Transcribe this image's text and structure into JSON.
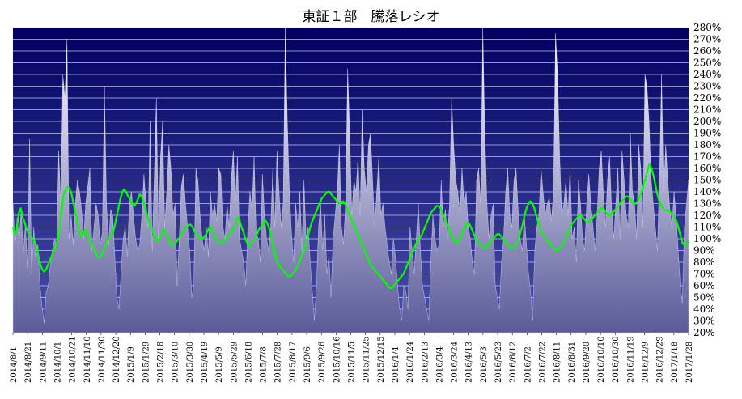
{
  "chart_data": {
    "type": "area",
    "title": "東証１部　騰落レシオ",
    "xlabel": "",
    "ylabel": "",
    "ylim": [
      20,
      280
    ],
    "y_ticks": [
      "20%",
      "30%",
      "40%",
      "50%",
      "60%",
      "70%",
      "80%",
      "90%",
      "100%",
      "110%",
      "120%",
      "130%",
      "140%",
      "150%",
      "160%",
      "170%",
      "180%",
      "190%",
      "200%",
      "210%",
      "220%",
      "230%",
      "240%",
      "250%",
      "260%",
      "270%",
      "280%"
    ],
    "x_ticks": [
      "2014/8/1",
      "2014/8/21",
      "2014/9/11",
      "2014/10/1",
      "2014/10/21",
      "2014/11/10",
      "2014/11/30",
      "2014/12/20",
      "2015/1/9",
      "2015/1/29",
      "2015/2/18",
      "2015/3/10",
      "2015/3/30",
      "2015/4/19",
      "2015/5/9",
      "2015/5/29",
      "2015/6/18",
      "2015/7/8",
      "2015/7/28",
      "2015/8/17",
      "2015/9/6",
      "2015/9/26",
      "2015/10/16",
      "2015/11/5",
      "2015/11/25",
      "2015/12/15",
      "2016/1/4",
      "2016/1/24",
      "2016/2/13",
      "2016/3/4",
      "2016/3/24",
      "2016/4/13",
      "2016/5/3",
      "2016/5/23",
      "2016/6/12",
      "2016/7/2",
      "2016/7/22",
      "2016/8/11",
      "2016/8/31",
      "2016/9/20",
      "2016/10/10",
      "2016/10/30",
      "2016/11/19",
      "2016/12/9",
      "2016/12/29",
      "2017/1/18",
      "2017/1/28"
    ],
    "series": [
      {
        "kind": "daily-ratio-area",
        "color": "#c0c0d8",
        "values": [
          130,
          95,
          118,
          100,
          125,
          88,
          112,
          75,
          185,
          70,
          110,
          82,
          95,
          60,
          42,
          28,
          55,
          60,
          78,
          90,
          100,
          95,
          175,
          130,
          240,
          220,
          270,
          100,
          120,
          95,
          130,
          150,
          140,
          125,
          100,
          130,
          145,
          160,
          90,
          110,
          130,
          120,
          95,
          105,
          230,
          130,
          95,
          125,
          120,
          85,
          50,
          40,
          70,
          100,
          110,
          85,
          130,
          140,
          120,
          100,
          90,
          95,
          120,
          155,
          130,
          110,
          200,
          90,
          155,
          220,
          100,
          170,
          200,
          110,
          140,
          180,
          160,
          120,
          130,
          60,
          100,
          145,
          155,
          130,
          110,
          90,
          50,
          60,
          160,
          150,
          120,
          100,
          90,
          110,
          85,
          140,
          120,
          130,
          115,
          160,
          155,
          110,
          100,
          130,
          110,
          150,
          175,
          130,
          170,
          100,
          90,
          80,
          60,
          110,
          140,
          125,
          170,
          105,
          100,
          80,
          155,
          120,
          100,
          90,
          110,
          160,
          110,
          175,
          140,
          110,
          130,
          280,
          200,
          140,
          105,
          80,
          130,
          110,
          140,
          90,
          150,
          100,
          110,
          80,
          55,
          30,
          60,
          110,
          130,
          90,
          120,
          70,
          85,
          50,
          100,
          120,
          140,
          180,
          110,
          95,
          130,
          245,
          190,
          120,
          150,
          140,
          170,
          120,
          210,
          160,
          140,
          180,
          190,
          150,
          110,
          140,
          170,
          120,
          130,
          110,
          95,
          80,
          70,
          100,
          85,
          60,
          40,
          30,
          60,
          55,
          40,
          110,
          90,
          70,
          100,
          130,
          90,
          60,
          50,
          40,
          30,
          80,
          120,
          100,
          90,
          95,
          150,
          110,
          125,
          100,
          130,
          220,
          180,
          150,
          140,
          120,
          160,
          130,
          140,
          110,
          100,
          80,
          70,
          150,
          160,
          130,
          280,
          190,
          130,
          100,
          120,
          130,
          60,
          50,
          40,
          80,
          100,
          140,
          160,
          120,
          110,
          150,
          160,
          125,
          100,
          90,
          120,
          95,
          70,
          55,
          30,
          90,
          110,
          120,
          160,
          140,
          120,
          130,
          135,
          115,
          140,
          275,
          240,
          170,
          120,
          130,
          150,
          120,
          160,
          100,
          110,
          80,
          150,
          130,
          100,
          90,
          130,
          155,
          130,
          110,
          90,
          120,
          160,
          175,
          140,
          110,
          150,
          170,
          125,
          100,
          130,
          160,
          100,
          175,
          150,
          120,
          110,
          190,
          140,
          130,
          100,
          180,
          160,
          110,
          240,
          230,
          200,
          150,
          130,
          110,
          90,
          150,
          240,
          140,
          180,
          150,
          125,
          110,
          140,
          120,
          90,
          60,
          45,
          110,
          130,
          150
        ]
      },
      {
        "kind": "moving-average-line",
        "color": "#00ff00",
        "values": [
          110,
          103,
          108,
          122,
          126,
          118,
          114,
          108,
          104,
          103,
          100,
          98,
          94,
          86,
          78,
          74,
          72,
          74,
          78,
          82,
          86,
          90,
          94,
          100,
          110,
          125,
          138,
          142,
          144,
          143,
          138,
          130,
          122,
          114,
          106,
          102,
          104,
          108,
          106,
          100,
          96,
          93,
          90,
          86,
          84,
          85,
          88,
          92,
          96,
          100,
          102,
          104,
          110,
          118,
          126,
          134,
          140,
          142,
          140,
          136,
          134,
          130,
          128,
          130,
          134,
          138,
          136,
          130,
          124,
          118,
          112,
          108,
          104,
          100,
          98,
          100,
          104,
          108,
          106,
          102,
          98,
          96,
          94,
          96,
          98,
          100,
          104,
          106,
          108,
          110,
          112,
          112,
          110,
          106,
          104,
          102,
          100,
          100,
          102,
          104,
          108,
          110,
          108,
          104,
          100,
          98,
          96,
          96,
          98,
          100,
          102,
          104,
          106,
          108,
          112,
          118,
          116,
          110,
          106,
          100,
          96,
          94,
          96,
          98,
          100,
          104,
          108,
          110,
          112,
          116,
          114,
          110,
          104,
          96,
          88,
          82,
          78,
          76,
          74,
          72,
          70,
          68,
          68,
          70,
          72,
          74,
          78,
          82,
          86,
          90,
          96,
          102,
          108,
          114,
          118,
          122,
          126,
          130,
          134,
          136,
          138,
          140,
          140,
          138,
          136,
          134,
          132,
          130,
          130,
          132,
          130,
          126,
          122,
          118,
          114,
          110,
          106,
          102,
          98,
          94,
          90,
          86,
          82,
          78,
          76,
          74,
          72,
          70,
          68,
          66,
          64,
          62,
          60,
          58,
          58,
          60,
          62,
          64,
          66,
          68,
          70,
          74,
          78,
          82,
          86,
          90,
          94,
          98,
          100,
          102,
          106,
          110,
          114,
          118,
          122,
          124,
          126,
          128,
          128,
          126,
          122,
          118,
          114,
          110,
          106,
          102,
          98,
          96,
          98,
          100,
          104,
          108,
          112,
          114,
          112,
          108,
          104,
          100,
          98,
          96,
          94,
          92,
          92,
          94,
          96,
          98,
          100,
          102,
          104,
          104,
          102,
          100,
          98,
          96,
          94,
          92,
          92,
          94,
          96,
          100,
          106,
          112,
          120,
          126,
          130,
          132,
          130,
          126,
          120,
          114,
          108,
          104,
          102,
          100,
          98,
          96,
          94,
          92,
          90,
          90,
          92,
          94,
          96,
          100,
          104,
          108,
          112,
          114,
          116,
          118,
          120,
          120,
          118,
          116,
          114,
          114,
          116,
          118,
          120,
          122,
          124,
          126,
          126,
          124,
          122,
          120,
          120,
          122,
          124,
          126,
          128,
          130,
          132,
          134,
          136,
          136,
          134,
          132,
          130,
          130,
          132,
          136,
          140,
          146,
          152,
          158,
          164,
          160,
          154,
          146,
          138,
          132,
          128,
          126,
          124,
          124,
          124,
          122,
          120,
          118,
          114,
          108,
          102,
          96,
          94,
          96,
          98
        ]
      }
    ],
    "grid": "horizontal",
    "plot_background": [
      "#000060",
      "#4a50aa"
    ]
  }
}
